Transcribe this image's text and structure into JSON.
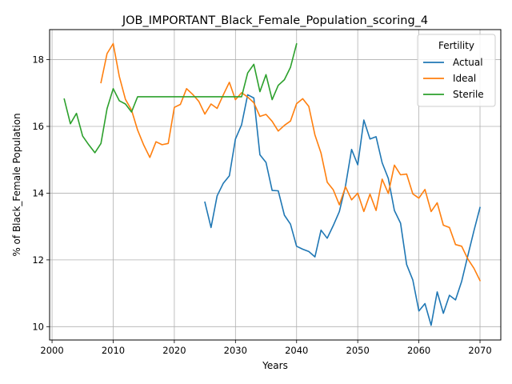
{
  "chart_data": {
    "type": "line",
    "title": "JOB_IMPORTANT_Black_Female_Population_scoring_4",
    "xlabel": "Years",
    "ylabel": "% of Black_Female Population",
    "xlim": [
      1999.6,
      2073.4
    ],
    "ylim": [
      9.6,
      18.9
    ],
    "x_ticks": [
      2000,
      2010,
      2020,
      2030,
      2040,
      2050,
      2060,
      2070
    ],
    "y_ticks": [
      10,
      12,
      14,
      16,
      18
    ],
    "grid": true,
    "legend": {
      "title": "Fertility",
      "position": "top-right"
    },
    "series": [
      {
        "name": "Actual",
        "color": "#1f77b4",
        "x": [
          2025,
          2026,
          2027,
          2028,
          2029,
          2030,
          2031,
          2032,
          2033,
          2034,
          2035,
          2036,
          2037,
          2038,
          2039,
          2040,
          2041,
          2042,
          2043,
          2044,
          2045,
          2046,
          2047,
          2048,
          2049,
          2050,
          2051,
          2052,
          2053,
          2054,
          2055,
          2056,
          2057,
          2058,
          2059,
          2060,
          2061,
          2062,
          2063,
          2064,
          2065,
          2066,
          2067,
          2068,
          2069,
          2070
        ],
        "y": [
          13.73,
          12.97,
          13.92,
          14.29,
          14.52,
          15.62,
          16.05,
          16.95,
          16.85,
          15.15,
          14.92,
          14.08,
          14.07,
          13.34,
          13.07,
          12.41,
          12.32,
          12.25,
          12.09,
          12.89,
          12.65,
          13.03,
          13.45,
          14.22,
          15.31,
          14.85,
          16.19,
          15.62,
          15.69,
          14.91,
          14.44,
          13.48,
          13.1,
          11.86,
          11.4,
          10.47,
          10.69,
          10.04,
          11.04,
          10.4,
          10.94,
          10.8,
          11.36,
          12.12,
          12.87,
          13.57
        ]
      },
      {
        "name": "Ideal",
        "color": "#ff7f0e",
        "x": [
          2008,
          2009,
          2010,
          2011,
          2012,
          2013,
          2014,
          2015,
          2016,
          2017,
          2018,
          2019,
          2020,
          2021,
          2022,
          2023,
          2024,
          2025,
          2026,
          2027,
          2028,
          2029,
          2030,
          2031,
          2032,
          2033,
          2034,
          2035,
          2036,
          2037,
          2038,
          2039,
          2040,
          2041,
          2042,
          2043,
          2044,
          2045,
          2046,
          2047,
          2048,
          2049,
          2050,
          2051,
          2052,
          2053,
          2054,
          2055,
          2056,
          2057,
          2058,
          2059,
          2060,
          2061,
          2062,
          2063,
          2064,
          2065,
          2066,
          2067,
          2068,
          2069,
          2070
        ],
        "y": [
          17.31,
          18.18,
          18.48,
          17.5,
          16.81,
          16.49,
          15.89,
          15.44,
          15.07,
          15.54,
          15.45,
          15.49,
          16.57,
          16.66,
          17.13,
          16.96,
          16.75,
          16.37,
          16.67,
          16.54,
          16.94,
          17.32,
          16.8,
          17.01,
          16.88,
          16.71,
          16.3,
          16.36,
          16.15,
          15.86,
          16.03,
          16.16,
          16.68,
          16.83,
          16.6,
          15.74,
          15.2,
          14.33,
          14.1,
          13.65,
          14.19,
          13.8,
          14.0,
          13.45,
          13.97,
          13.48,
          14.42,
          13.99,
          14.84,
          14.55,
          14.57,
          13.98,
          13.85,
          14.11,
          13.45,
          13.71,
          13.04,
          12.97,
          12.46,
          12.41,
          12.03,
          11.75,
          11.38
        ]
      },
      {
        "name": "Sterile",
        "color": "#2ca02c",
        "x": [
          2002,
          2003,
          2004,
          2005,
          2006,
          2007,
          2008,
          2009,
          2010,
          2011,
          2012,
          2013,
          2014,
          2015,
          2016,
          2017,
          2018,
          2019,
          2020,
          2021,
          2022,
          2023,
          2024,
          2025,
          2026,
          2027,
          2028,
          2029,
          2030,
          2031,
          2032,
          2033,
          2034,
          2035,
          2036,
          2037,
          2038,
          2039,
          2040
        ],
        "y": [
          16.82,
          16.08,
          16.39,
          15.71,
          15.45,
          15.21,
          15.49,
          16.53,
          17.13,
          16.77,
          16.67,
          16.43,
          16.89,
          16.89,
          16.89,
          16.89,
          16.89,
          16.89,
          16.89,
          16.89,
          16.89,
          16.89,
          16.89,
          16.89,
          16.89,
          16.89,
          16.89,
          16.89,
          16.89,
          16.89,
          17.6,
          17.86,
          17.04,
          17.55,
          16.8,
          17.23,
          17.4,
          17.77,
          18.47
        ]
      }
    ]
  }
}
